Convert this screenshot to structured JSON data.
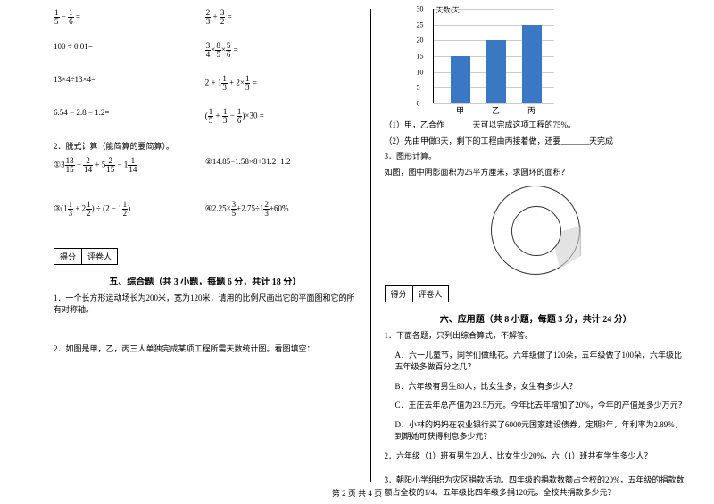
{
  "left": {
    "equations": [
      {
        "a": "1/5 − 1/6 =",
        "b": "2/3 + 3/2 ="
      },
      {
        "a": "100 ÷ 0.01=",
        "b": "3/4 × 8/5 × 5/6 ="
      },
      {
        "a": "13×4÷13×4=",
        "b": "2 + 1 1/3 + 2×1/3 ="
      },
      {
        "a": "6.54 − 2.8 − 1.2=",
        "b": "(1/5 + 1/3 − 1/6)×30 ="
      }
    ],
    "q2_title": "2．脱式计算（能简算的要简算）。",
    "q2_items": {
      "a": "①3 13/15 − 2/14 + 5 2/15 − 1 1/14",
      "b": "②14.85−1.58×8+31.2÷1.2",
      "c": "③(1 1/3 + 2 1/2) ÷ (2 − 1 1/2)",
      "d": "④2.25×3/5+2.75÷1 2/3+60%"
    },
    "score_label_a": "得分",
    "score_label_b": "评卷人",
    "sec5_title": "五、综合题（共 3 小题，每题 6 分，共计 18 分）",
    "sec5_q1": "1．一个长方形运动场长为200米，宽为120米，请用的比例尺画出它的平面图和它的所有对称轴。",
    "sec5_q2": "2．如图是甲，乙，丙三人单独完成某项工程所需天数统计图。看图填空：",
    "footer": "第 2 页 共 4 页"
  },
  "right": {
    "chart": {
      "ylabel_top": "天数/天",
      "yticks": [
        0,
        5,
        10,
        15,
        20,
        25,
        30
      ],
      "bars": [
        {
          "label": "甲",
          "value": 15,
          "color": "#3a78c4"
        },
        {
          "label": "乙",
          "value": 20,
          "color": "#3a78c4"
        },
        {
          "label": "丙",
          "value": 25,
          "color": "#3a78c4"
        }
      ],
      "grid_color": "#cccccc",
      "max": 30
    },
    "sec5_q2_sub1": "（1）甲，乙合作_______天可以完成这项工程的75%。",
    "sec5_q2_sub2": "（2）先由甲做3天，剩下的工程由丙接着做，还要_______天完成",
    "sec5_q3_title": "3．图形计算。",
    "sec5_q3_text": "如图，图中阴影面积为25平方厘米，求圆环的面积？",
    "score_label_a": "得分",
    "score_label_b": "评卷人",
    "sec6_title": "六、应用题（共 8 小题，每题 3 分，共计 24 分）",
    "sec6_q1": "1．下面各题，只列出综合算式，不解答。",
    "sec6_q1_a": "A．六一儿童节，同学们做纸花。六年级做了120朵，五年级做了100朵，六年级比五年级多做百分之几？",
    "sec6_q1_b": "B．六年级有男生80人，比女生多，女生有多少人？",
    "sec6_q1_c": "C．王庄去年总产值为23.5万元。今年比去年增加了20%，今年的产值是多少万元？",
    "sec6_q1_d": "D．小林的妈妈在农业银行买了6000元国家建设债券，定期3年，年利率为2.89%，到期她可获得利息多少元？",
    "sec6_q2": "2．六年级（1）班有男生20人，比女生少20%，六（1）班共有学生多少人？",
    "sec6_q3": "3．朝阳小学组织为灾区捐款活动。四年级的捐款数额占全校的20%，五年级的捐款数额占全校的1/4。五年级比四年级多捐120元。全校共捐款多少元？"
  }
}
